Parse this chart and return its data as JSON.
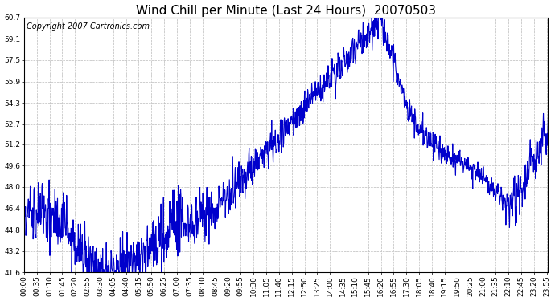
{
  "title": "Wind Chill per Minute (Last 24 Hours)  20070503",
  "copyright_text": "Copyright 2007 Cartronics.com",
  "line_color": "#0000CC",
  "bg_color": "#ffffff",
  "plot_bg_color": "#ffffff",
  "grid_color": "#bbbbbb",
  "ylim": [
    41.6,
    60.7
  ],
  "yticks": [
    41.6,
    43.2,
    44.8,
    46.4,
    48.0,
    49.6,
    51.2,
    52.7,
    54.3,
    55.9,
    57.5,
    59.1,
    60.7
  ],
  "xtick_labels": [
    "00:00",
    "00:35",
    "01:10",
    "01:45",
    "02:20",
    "02:55",
    "03:30",
    "04:05",
    "04:40",
    "05:15",
    "05:50",
    "06:25",
    "07:00",
    "07:35",
    "08:10",
    "08:45",
    "09:20",
    "09:55",
    "10:30",
    "11:05",
    "11:40",
    "12:15",
    "12:50",
    "13:25",
    "14:00",
    "14:35",
    "15:10",
    "15:45",
    "16:20",
    "16:55",
    "17:30",
    "18:05",
    "18:40",
    "19:15",
    "19:50",
    "20:25",
    "21:00",
    "21:35",
    "22:10",
    "22:45",
    "23:20",
    "23:55"
  ],
  "title_fontsize": 11,
  "tick_fontsize": 6.5,
  "copyright_fontsize": 7,
  "line_width": 0.8,
  "fig_width": 6.9,
  "fig_height": 3.75,
  "dpi": 100
}
